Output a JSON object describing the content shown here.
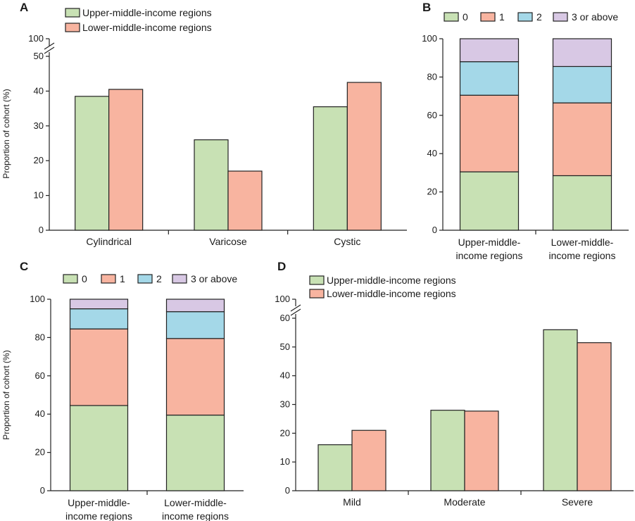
{
  "colors": {
    "upper": "#c8e1b4",
    "lower": "#f8b4a0",
    "c0": "#c8e1b4",
    "c1": "#f8b4a0",
    "c2": "#a4d8e8",
    "c3": "#d8c8e4",
    "edge": "#222222"
  },
  "chart_data": [
    {
      "panel": "A",
      "type": "bar",
      "title": "",
      "ylabel": "Proportion of cohort (%)",
      "categories": [
        "Cylindrical",
        "Varicose",
        "Cystic"
      ],
      "series": [
        {
          "name": "Upper-middle-income regions",
          "values": [
            38.5,
            26,
            35.5
          ]
        },
        {
          "name": "Lower-middle-income regions",
          "values": [
            40.5,
            17,
            42.5
          ]
        }
      ],
      "ylim": [
        0,
        50
      ],
      "yticks": [
        0,
        10,
        20,
        30,
        40,
        50
      ],
      "axis_break_label": "100",
      "legend": "top-left"
    },
    {
      "panel": "B",
      "type": "bar",
      "stacked": true,
      "ylabel": "",
      "categories": [
        "Upper-middle- income regions",
        "Lower-middle- income regions"
      ],
      "series": [
        {
          "name": "0",
          "values": [
            30.5,
            28.5
          ]
        },
        {
          "name": "1",
          "values": [
            40,
            38
          ]
        },
        {
          "name": "2",
          "values": [
            17.5,
            19
          ]
        },
        {
          "name": "3 or above",
          "values": [
            12,
            14.5
          ]
        }
      ],
      "ylim": [
        0,
        100
      ],
      "yticks": [
        0,
        20,
        40,
        60,
        80,
        100
      ],
      "legend": "top"
    },
    {
      "panel": "C",
      "type": "bar",
      "stacked": true,
      "ylabel": "Proportion of cohort (%)",
      "categories": [
        "Upper-middle- income regions",
        "Lower-middle- income regions"
      ],
      "series": [
        {
          "name": "0",
          "values": [
            44.5,
            39.5
          ]
        },
        {
          "name": "1",
          "values": [
            40,
            40
          ]
        },
        {
          "name": "2",
          "values": [
            10.5,
            14
          ]
        },
        {
          "name": "3 or above",
          "values": [
            5,
            6.5
          ]
        }
      ],
      "ylim": [
        0,
        100
      ],
      "yticks": [
        0,
        20,
        40,
        60,
        80,
        100
      ],
      "legend": "top"
    },
    {
      "panel": "D",
      "type": "bar",
      "ylabel": "",
      "categories": [
        "Mild",
        "Moderate",
        "Severe"
      ],
      "series": [
        {
          "name": "Upper-middle-income regions",
          "values": [
            16,
            28,
            56
          ]
        },
        {
          "name": "Lower-middle-income regions",
          "values": [
            21,
            27.7,
            51.5
          ]
        }
      ],
      "ylim": [
        0,
        60
      ],
      "yticks": [
        0,
        10,
        20,
        30,
        40,
        50,
        60
      ],
      "axis_break_label": "100",
      "legend": "top-left"
    }
  ]
}
